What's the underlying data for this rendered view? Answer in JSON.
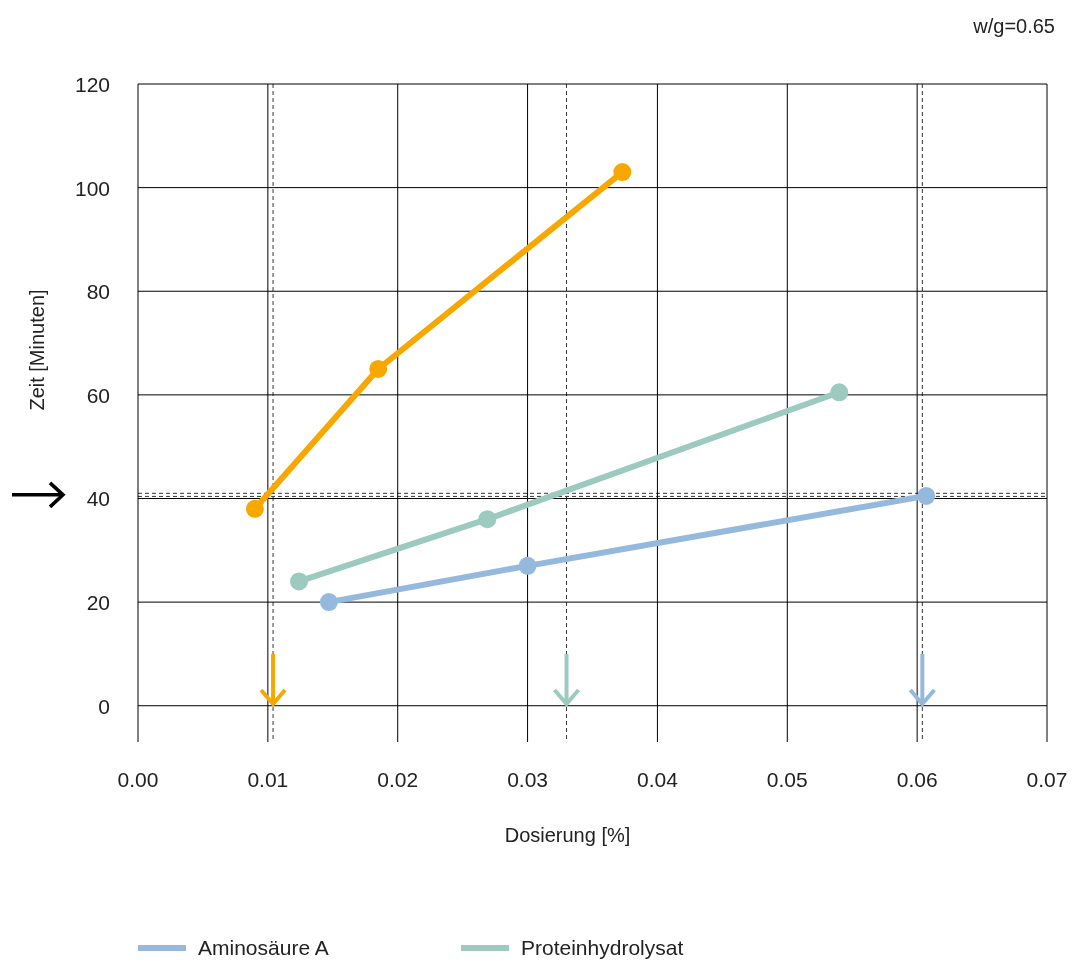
{
  "chart_data": {
    "type": "line",
    "xlabel": "Dosierung [%]",
    "ylabel": "Zeit [Minuten]",
    "annotations": [
      "w/g=0.65"
    ],
    "xlim": [
      0,
      0.07
    ],
    "xticks": [
      {
        "value": 0,
        "label": "0.00"
      },
      {
        "value": 0.01,
        "label": "0.01"
      },
      {
        "value": 0.02,
        "label": "0.02"
      },
      {
        "value": 0.03,
        "label": "0.03"
      },
      {
        "value": 0.04,
        "label": "0.04"
      },
      {
        "value": 0.05,
        "label": "0.05"
      },
      {
        "value": 0.06,
        "label": "0.06"
      },
      {
        "value": 0.07,
        "label": "0.07"
      }
    ],
    "ylim": [
      -7,
      120
    ],
    "yticks": [
      0,
      20,
      40,
      60,
      80,
      100,
      120
    ],
    "grid": true,
    "legend": "bottom",
    "marker": "circle",
    "line_style": "solid",
    "series": [
      {
        "name": "Aminosäure A",
        "color": "#95b9dc",
        "x": [
          0.0147,
          0.03,
          0.0607
        ],
        "values": [
          20,
          27,
          40.5
        ]
      },
      {
        "name": "Proteinhydrolysat",
        "color": "#9ccabe",
        "x": [
          0.0124,
          0.0269,
          0.054
        ],
        "values": [
          24,
          36,
          60.5
        ]
      },
      {
        "color": "#f7a800",
        "x": [
          0.009,
          0.0185,
          0.0373
        ],
        "values": [
          38,
          65,
          103
        ]
      }
    ],
    "ref_lines": [
      {
        "axis": "x",
        "value": 0.0604,
        "color": "#000000",
        "line_style": "dashed"
      },
      {
        "axis": "x",
        "value": 0.033,
        "color": "#000000",
        "line_style": "dashed"
      },
      {
        "axis": "x",
        "value": 0.0104,
        "color": "#000000",
        "line_style": "dashed"
      },
      {
        "axis": "y",
        "value": 41,
        "color": "#000000",
        "line_style": "dashed"
      },
      {
        "axis": "y",
        "value": 40.4,
        "color": "#000000",
        "line_style": "dashed"
      }
    ]
  }
}
